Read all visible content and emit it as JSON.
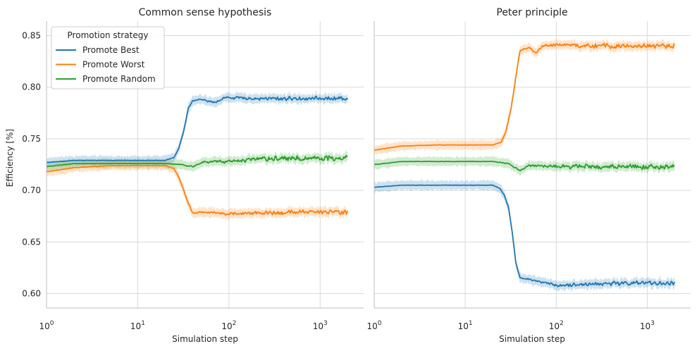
{
  "chart_data": {
    "type": "line",
    "ylabel": "Efficiency [%]",
    "xlabel": "Simulation step",
    "x_scale": "log",
    "x_range": [
      1,
      2000
    ],
    "x_limits": [
      1,
      3000
    ],
    "y_limits": [
      0.586,
      0.864
    ],
    "y_ticks": [
      0.6,
      0.65,
      0.7,
      0.75,
      0.8,
      0.85
    ],
    "y_tick_labels": [
      "0.60",
      "0.65",
      "0.70",
      "0.75",
      "0.80",
      "0.85"
    ],
    "x_ticks": [
      1,
      10,
      100,
      1000
    ],
    "x_tick_labels": [
      {
        "base": "10",
        "exp": "0"
      },
      {
        "base": "10",
        "exp": "1"
      },
      {
        "base": "10",
        "exp": "2"
      },
      {
        "base": "10",
        "exp": "3"
      }
    ],
    "grid": true,
    "legend": {
      "title": "Promotion strategy",
      "placement": "upper-left of first panel",
      "entries": [
        {
          "name": "Promote Best",
          "color": "#1f77b4"
        },
        {
          "name": "Promote Worst",
          "color": "#ff7f0e"
        },
        {
          "name": "Promote Random",
          "color": "#2ca02c"
        }
      ]
    },
    "panels": [
      {
        "title": "Common sense hypothesis",
        "series": [
          {
            "name": "Promote Best",
            "color": "#1f77b4",
            "noise": 0.0022,
            "band": 0.004,
            "points": [
              [
                1,
                0.727
              ],
              [
                2,
                0.729
              ],
              [
                5,
                0.729
              ],
              [
                10,
                0.729
              ],
              [
                20,
                0.729
              ],
              [
                25,
                0.732
              ],
              [
                28,
                0.74
              ],
              [
                32,
                0.758
              ],
              [
                36,
                0.78
              ],
              [
                40,
                0.787
              ],
              [
                50,
                0.788
              ],
              [
                70,
                0.785
              ],
              [
                90,
                0.79
              ],
              [
                200,
                0.789
              ],
              [
                500,
                0.789
              ],
              [
                1000,
                0.789
              ],
              [
                2000,
                0.789
              ]
            ]
          },
          {
            "name": "Promote Worst",
            "color": "#ff7f0e",
            "noise": 0.0024,
            "band": 0.004,
            "points": [
              [
                1,
                0.718
              ],
              [
                2,
                0.722
              ],
              [
                5,
                0.724
              ],
              [
                10,
                0.724
              ],
              [
                20,
                0.724
              ],
              [
                25,
                0.721
              ],
              [
                28,
                0.713
              ],
              [
                32,
                0.7
              ],
              [
                36,
                0.687
              ],
              [
                40,
                0.678
              ],
              [
                50,
                0.679
              ],
              [
                70,
                0.679
              ],
              [
                100,
                0.677
              ],
              [
                200,
                0.678
              ],
              [
                500,
                0.679
              ],
              [
                1000,
                0.679
              ],
              [
                2000,
                0.679
              ]
            ]
          },
          {
            "name": "Promote Random",
            "color": "#2ca02c",
            "noise": 0.003,
            "band": 0.004,
            "points": [
              [
                1,
                0.723
              ],
              [
                2,
                0.726
              ],
              [
                5,
                0.726
              ],
              [
                10,
                0.726
              ],
              [
                20,
                0.726
              ],
              [
                30,
                0.725
              ],
              [
                40,
                0.723
              ],
              [
                50,
                0.727
              ],
              [
                70,
                0.728
              ],
              [
                100,
                0.728
              ],
              [
                200,
                0.73
              ],
              [
                500,
                0.731
              ],
              [
                1000,
                0.731
              ],
              [
                2000,
                0.732
              ]
            ]
          }
        ]
      },
      {
        "title": "Peter principle",
        "series": [
          {
            "name": "Promote Best",
            "color": "#1f77b4",
            "noise": 0.0024,
            "band": 0.004,
            "points": [
              [
                1,
                0.703
              ],
              [
                2,
                0.705
              ],
              [
                5,
                0.705
              ],
              [
                10,
                0.705
              ],
              [
                20,
                0.705
              ],
              [
                24,
                0.702
              ],
              [
                27,
                0.695
              ],
              [
                30,
                0.683
              ],
              [
                33,
                0.658
              ],
              [
                36,
                0.63
              ],
              [
                40,
                0.615
              ],
              [
                50,
                0.614
              ],
              [
                70,
                0.611
              ],
              [
                100,
                0.608
              ],
              [
                200,
                0.609
              ],
              [
                500,
                0.61
              ],
              [
                1000,
                0.61
              ],
              [
                2000,
                0.61
              ]
            ]
          },
          {
            "name": "Promote Worst",
            "color": "#ff7f0e",
            "noise": 0.0026,
            "band": 0.004,
            "points": [
              [
                1,
                0.739
              ],
              [
                2,
                0.743
              ],
              [
                5,
                0.744
              ],
              [
                10,
                0.744
              ],
              [
                20,
                0.744
              ],
              [
                25,
                0.747
              ],
              [
                28,
                0.757
              ],
              [
                32,
                0.78
              ],
              [
                36,
                0.81
              ],
              [
                40,
                0.835
              ],
              [
                50,
                0.839
              ],
              [
                60,
                0.833
              ],
              [
                70,
                0.84
              ],
              [
                100,
                0.841
              ],
              [
                200,
                0.84
              ],
              [
                500,
                0.84
              ],
              [
                1000,
                0.84
              ],
              [
                2000,
                0.84
              ]
            ]
          },
          {
            "name": "Promote Random",
            "color": "#2ca02c",
            "noise": 0.003,
            "band": 0.004,
            "points": [
              [
                1,
                0.725
              ],
              [
                2,
                0.728
              ],
              [
                5,
                0.728
              ],
              [
                10,
                0.728
              ],
              [
                20,
                0.728
              ],
              [
                30,
                0.726
              ],
              [
                40,
                0.719
              ],
              [
                50,
                0.724
              ],
              [
                100,
                0.723
              ],
              [
                200,
                0.723
              ],
              [
                500,
                0.723
              ],
              [
                1000,
                0.723
              ],
              [
                2000,
                0.723
              ]
            ]
          }
        ]
      }
    ]
  }
}
